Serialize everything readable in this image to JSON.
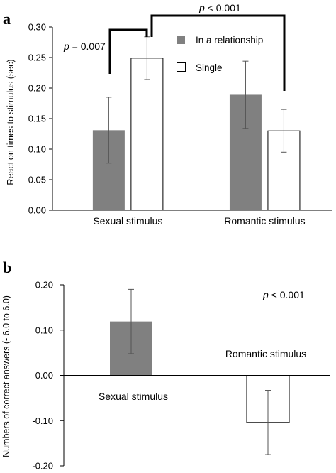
{
  "chart_data": [
    {
      "panel": "a",
      "type": "bar",
      "ylabel": "Reaction times to stimulus (sec)",
      "ylim": [
        0,
        0.3
      ],
      "yticks": [
        "0.00",
        "0.05",
        "0.10",
        "0.15",
        "0.20",
        "0.25",
        "0.30"
      ],
      "categories": [
        "Sexual stimulus",
        "Romantic stimulus"
      ],
      "legend_position": "top-right",
      "series": [
        {
          "name": "In a relationship",
          "color": "#808080",
          "values": [
            0.131,
            0.189
          ],
          "error": [
            0.054,
            0.055
          ]
        },
        {
          "name": "Single",
          "color": "#ffffff",
          "values": [
            0.249,
            0.13
          ],
          "error": [
            0.035,
            0.035
          ]
        }
      ],
      "annotations": [
        {
          "p_letter": "p",
          "text": " = 0.007"
        },
        {
          "p_letter": "p",
          "text": " < 0.001"
        }
      ]
    },
    {
      "panel": "b",
      "type": "bar",
      "ylabel": "Numbers of correct answers (- 6.0 to 6.0)",
      "ylim": [
        -0.2,
        0.2
      ],
      "yticks": [
        "0.20",
        "0.10",
        "0.00",
        "-0.10",
        "-0.20"
      ],
      "categories": [
        "Sexual stimulus",
        "Romantic stimulus"
      ],
      "series": [
        {
          "values": [
            0.119,
            -0.104
          ],
          "error": [
            0.071,
            0.071
          ],
          "colors": [
            "#808080",
            "#ffffff"
          ]
        }
      ],
      "annotations": [
        {
          "p_letter": "p",
          "text": " < 0.001"
        }
      ]
    }
  ]
}
